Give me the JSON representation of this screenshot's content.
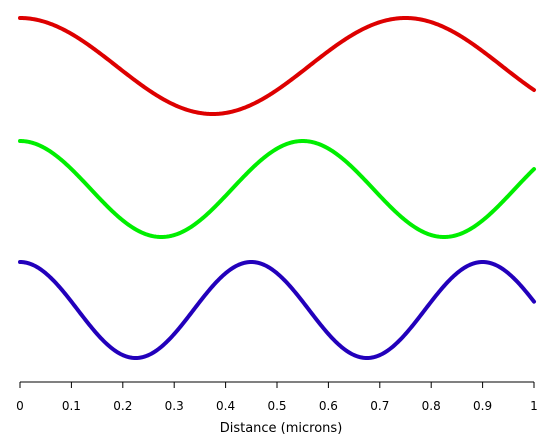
{
  "chart_data": {
    "type": "line",
    "xlabel": "Distance (microns)",
    "xlim": [
      0,
      1
    ],
    "x_ticks": [
      0,
      0.1,
      0.2,
      0.3,
      0.4,
      0.5,
      0.6,
      0.7,
      0.8,
      0.9,
      1
    ],
    "x_tick_labels": [
      "0",
      "0.1",
      "0.2",
      "0.3",
      "0.4",
      "0.5",
      "0.6",
      "0.7",
      "0.8",
      "0.9",
      "1"
    ],
    "grid": false,
    "legend": "none",
    "series": [
      {
        "color": "#dd0000",
        "wavelength": 0.75,
        "amplitude": 1
      },
      {
        "color": "#00ee00",
        "wavelength": 0.55,
        "amplitude": 1
      },
      {
        "color": "#2200bb",
        "wavelength": 0.45,
        "amplitude": 1
      }
    ],
    "formula": "y = cos(2*pi*x / wavelength)"
  }
}
